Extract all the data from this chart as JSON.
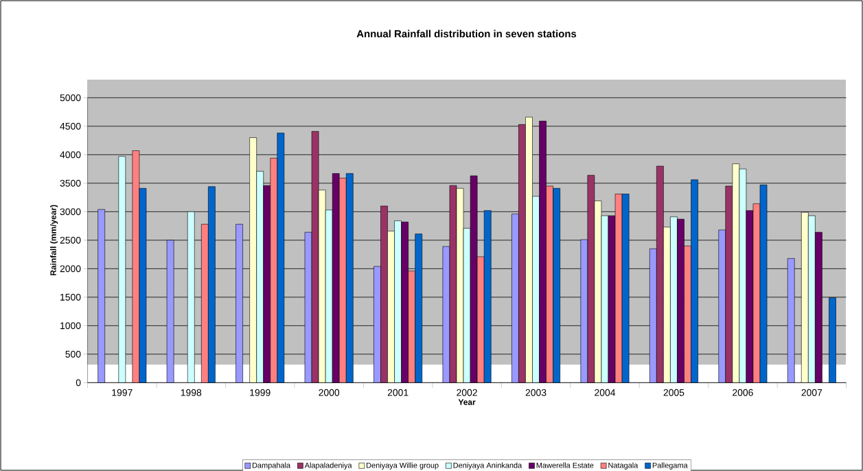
{
  "chart_data": {
    "type": "bar",
    "title": "Annual Rainfall distribution in seven stations",
    "xlabel": "Year",
    "ylabel": "Rainfall (mm/year)",
    "categories": [
      "1997",
      "1998",
      "1999",
      "2000",
      "2001",
      "2002",
      "2003",
      "2004",
      "2005",
      "2006",
      "2007"
    ],
    "series": [
      {
        "name": "Dampahala",
        "color": "#9999ff",
        "values": [
          3040,
          2500,
          2780,
          2640,
          2040,
          2390,
          2960,
          2510,
          2350,
          2680,
          2180
        ]
      },
      {
        "name": "Alapaladeniya",
        "color": "#993366",
        "values": [
          null,
          null,
          null,
          4410,
          3100,
          3460,
          4530,
          3640,
          3800,
          3450,
          null
        ]
      },
      {
        "name": "Deniyaya Willie group",
        "color": "#ffffcc",
        "values": [
          null,
          null,
          4300,
          3380,
          2660,
          3410,
          4660,
          3190,
          2730,
          3840,
          2990
        ]
      },
      {
        "name": "Deniyaya Aninkanda",
        "color": "#ccffff",
        "values": [
          3970,
          3000,
          3710,
          3030,
          2840,
          2710,
          3270,
          2930,
          2910,
          3750,
          2930
        ]
      },
      {
        "name": "Mawerella Estate",
        "color": "#660066",
        "values": [
          null,
          null,
          3460,
          3670,
          2820,
          3630,
          4590,
          2930,
          2870,
          3020,
          2640
        ]
      },
      {
        "name": "Natagala",
        "color": "#ff8080",
        "values": [
          4070,
          2780,
          3940,
          3590,
          1960,
          2210,
          3450,
          3310,
          2400,
          3140,
          null
        ]
      },
      {
        "name": "Pallegama",
        "color": "#0066cc",
        "values": [
          3410,
          3440,
          4380,
          3670,
          2610,
          3020,
          3410,
          3310,
          3560,
          3470,
          1490
        ]
      }
    ],
    "ylim": [
      0,
      5000
    ],
    "yticks": [
      0,
      500,
      1000,
      1500,
      2000,
      2500,
      3000,
      3500,
      4000,
      4500,
      5000
    ],
    "grid": "y",
    "legend": "bottom"
  }
}
